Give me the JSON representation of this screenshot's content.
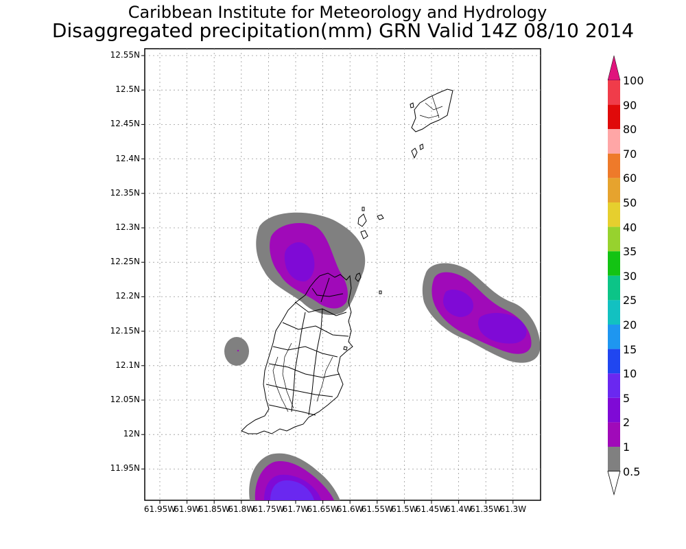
{
  "header": {
    "title_line1": "Caribbean Institute for Meteorology and Hydrology",
    "title_line2": "Disaggregated precipitation(mm) GRN Valid 14Z 08/10 2014"
  },
  "map": {
    "lat_labels": [
      "12.55N",
      "12.5N",
      "12.45N",
      "12.4N",
      "12.35N",
      "12.3N",
      "12.25N",
      "12.2N",
      "12.15N",
      "12.1N",
      "12.05N",
      "12N",
      "11.95N"
    ],
    "lon_labels": [
      "61.95W",
      "61.9W",
      "61.85W",
      "61.8W",
      "61.75W",
      "61.7W",
      "61.65W",
      "61.6W",
      "61.55W",
      "61.5W",
      "61.45W",
      "61.4W",
      "61.35W",
      "61.3W"
    ],
    "grid": "dotted"
  },
  "colorbar": {
    "labels": [
      "100",
      "90",
      "80",
      "70",
      "60",
      "50",
      "40",
      "35",
      "30",
      "25",
      "20",
      "15",
      "10",
      "5",
      "2",
      "1",
      "0.5"
    ],
    "colors": [
      "#f03c4a",
      "#e00a0a",
      "#ffa6a6",
      "#ee7a2a",
      "#e6a32e",
      "#e6cf2e",
      "#97d22e",
      "#13c313",
      "#0cc487",
      "#12c1c1",
      "#1e96f0",
      "#2046f0",
      "#6a28f0",
      "#7f0ad6",
      "#a00ab9",
      "#808080"
    ],
    "top_arrow_color": "#e0147d"
  },
  "chart_data": {
    "type": "heatmap",
    "title": "Disaggregated precipitation(mm) GRN Valid 14Z 08/10 2014",
    "region": "Grenada (GRN)",
    "xlim": [
      -61.97,
      -61.27
    ],
    "ylim": [
      11.905,
      12.56
    ],
    "units": "mm",
    "levels": [
      0.5,
      1,
      2,
      5,
      10,
      15,
      20,
      25,
      30,
      35,
      40,
      50,
      60,
      70,
      80,
      90,
      100
    ],
    "precip_areas": [
      {
        "name": "north-of-island",
        "lon": -61.685,
        "lat": 12.25,
        "rx": 0.09,
        "ry": 0.08,
        "max_level": 2
      },
      {
        "name": "east-offshore",
        "lon": -61.375,
        "lat": 12.17,
        "rx": 0.1,
        "ry": 0.07,
        "max_level": 2
      },
      {
        "name": "west-offshore-spot",
        "lon": -61.8,
        "lat": 12.12,
        "rx": 0.02,
        "ry": 0.02,
        "max_level": 0.5
      },
      {
        "name": "south-offshore",
        "lon": -61.72,
        "lat": 11.92,
        "rx": 0.07,
        "ry": 0.05,
        "max_level": 5
      }
    ]
  }
}
